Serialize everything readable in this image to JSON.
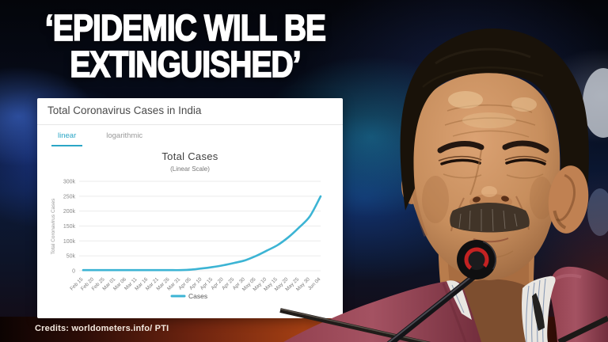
{
  "headline": {
    "line1": "‘EPIDEMIC WILL BE",
    "line2": "EXTINGUISHED’"
  },
  "card": {
    "title": "Total Coronavirus Cases in India",
    "tabs": [
      {
        "label": "linear",
        "active": true
      },
      {
        "label": "logarithmic",
        "active": false
      }
    ]
  },
  "chart_data": {
    "type": "line",
    "title": "Total Cases",
    "subtitle": "(Linear Scale)",
    "xlabel": "",
    "ylabel": "Total Coronavirus Cases",
    "legend": [
      "Cases"
    ],
    "legend_position": "bottom",
    "grid": true,
    "ylim": [
      0,
      300000
    ],
    "ytick_labels": [
      "0",
      "50k",
      "100k",
      "150k",
      "200k",
      "250k",
      "300k"
    ],
    "categories": [
      "Feb 15",
      "Feb 20",
      "Feb 25",
      "Mar 01",
      "Mar 06",
      "Mar 11",
      "Mar 16",
      "Mar 21",
      "Mar 26",
      "Mar 31",
      "Apr 05",
      "Apr 10",
      "Apr 15",
      "Apr 20",
      "Apr 25",
      "Apr 30",
      "May 05",
      "May 10",
      "May 15",
      "May 20",
      "May 25",
      "May 30",
      "Jun 04"
    ],
    "series": [
      {
        "name": "Cases",
        "color": "#3cb4d4",
        "values": [
          3,
          3,
          3,
          3,
          31,
          62,
          114,
          330,
          727,
          1397,
          3588,
          7600,
          12370,
          18539,
          26283,
          34866,
          49400,
          67161,
          85784,
          112028,
          144950,
          182490,
          249500
        ]
      }
    ]
  },
  "credits": "Credits: worldometers.info/ PTI",
  "colors": {
    "accent_cyan": "#2ba6c6",
    "headline_text": "#ffffff"
  }
}
